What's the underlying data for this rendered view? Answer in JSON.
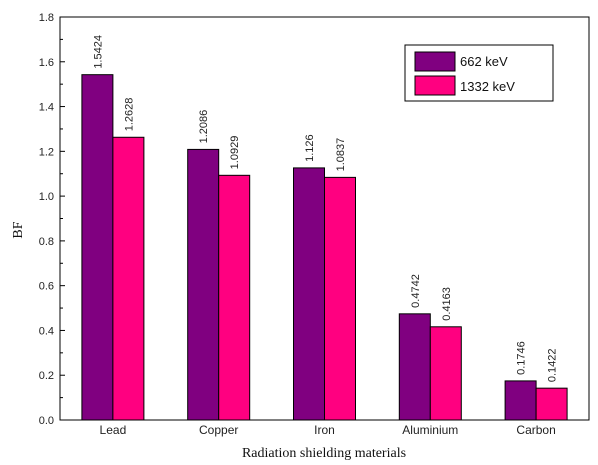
{
  "chart_data": {
    "type": "bar",
    "categories": [
      "Lead",
      "Copper",
      "Iron",
      "Aluminium",
      "Carbon"
    ],
    "series": [
      {
        "name": "662 keV",
        "values": [
          1.5424,
          1.2086,
          1.126,
          0.4742,
          0.1746
        ],
        "value_labels": [
          "1.5424",
          "1.2086",
          "1.126",
          "0.4742",
          "0.1746"
        ],
        "color": "#800080"
      },
      {
        "name": "1332 keV",
        "values": [
          1.2628,
          1.0929,
          1.0837,
          0.4163,
          0.1422
        ],
        "value_labels": [
          "1.2628",
          "1.0929",
          "1.0837",
          "0.4163",
          "0.1422"
        ],
        "color": "#ff0080"
      }
    ],
    "xlabel": "Radiation shielding materials",
    "ylabel": "BF",
    "ylim": [
      0.0,
      1.8
    ],
    "yticks": [
      "0.0",
      "0.2",
      "0.4",
      "0.6",
      "0.8",
      "1.0",
      "1.2",
      "1.4",
      "1.6",
      "1.8"
    ],
    "legend_position": "top-right",
    "grid": false
  }
}
